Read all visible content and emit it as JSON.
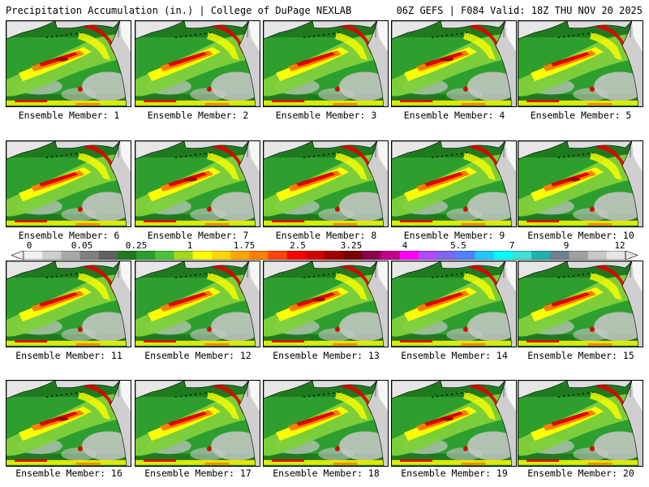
{
  "header": {
    "left_title": "Precipitation Accumulation (in.) | College of DuPage NEXLAB",
    "right_title": "06Z GEFS | F084 Valid: 18Z THU NOV 20 2025"
  },
  "panels": [
    {
      "caption": "Ensemble Member: 1"
    },
    {
      "caption": "Ensemble Member: 2"
    },
    {
      "caption": "Ensemble Member: 3"
    },
    {
      "caption": "Ensemble Member: 4"
    },
    {
      "caption": "Ensemble Member: 5"
    },
    {
      "caption": "Ensemble Member: 6"
    },
    {
      "caption": "Ensemble Member: 7"
    },
    {
      "caption": "Ensemble Member: 8"
    },
    {
      "caption": "Ensemble Member: 9"
    },
    {
      "caption": "Ensemble Member: 10"
    },
    {
      "caption": "Ensemble Member: 11"
    },
    {
      "caption": "Ensemble Member: 12"
    },
    {
      "caption": "Ensemble Member: 13"
    },
    {
      "caption": "Ensemble Member: 14"
    },
    {
      "caption": "Ensemble Member: 15"
    },
    {
      "caption": "Ensemble Member: 16"
    },
    {
      "caption": "Ensemble Member: 17"
    },
    {
      "caption": "Ensemble Member: 18"
    },
    {
      "caption": "Ensemble Member: 19"
    },
    {
      "caption": "Ensemble Member: 20"
    }
  ],
  "colorbar": {
    "labels": [
      "0",
      "0.05",
      "0.25",
      "1",
      "1.75",
      "2.5",
      "3.25",
      "4",
      "5.5",
      "7",
      "9",
      "12"
    ],
    "colors": [
      "#f0f0f0",
      "#cfcfcf",
      "#a9a9a9",
      "#808080",
      "#606060",
      "#1f7a1f",
      "#2e9e2e",
      "#4cc33a",
      "#a6d61d",
      "#ffff00",
      "#ffd700",
      "#ffa500",
      "#ff7f00",
      "#ff4500",
      "#ff0000",
      "#d00000",
      "#a00000",
      "#7a0000",
      "#8b0050",
      "#c0008a",
      "#ff00ff",
      "#b04cff",
      "#7b68ee",
      "#4f81ff",
      "#1ec8ff",
      "#00ffff",
      "#40e0d0",
      "#20b2aa",
      "#708090",
      "#a0a0a0",
      "#c8c8c8",
      "#e6e6e6"
    ]
  },
  "map_colors": {
    "ocean_light": "#2e9e2e",
    "ocean_dark": "#1f7a1f",
    "dry": "#c8c8c8",
    "light": "#7fd13b",
    "moderate": "#ffff00",
    "heavy": "#ff7f00",
    "intense": "#e00000",
    "extreme": "#9b0000",
    "land_outline": "#000000",
    "snow": "#ffffff"
  }
}
